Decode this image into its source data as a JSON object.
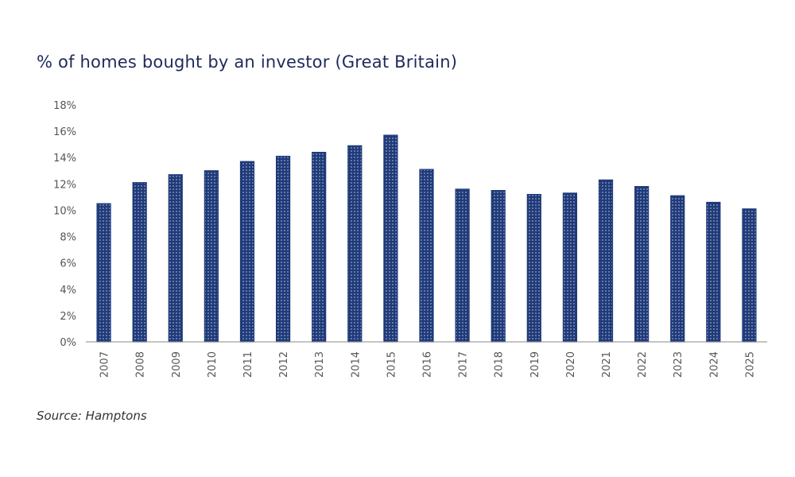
{
  "title": "% of homes bought by an investor (Great Britain)",
  "source": "Source: Hamptons",
  "colors": {
    "bar": "#1f3a7a",
    "bar_pattern": "#ffffff",
    "axis": "#888888"
  },
  "chart_data": {
    "type": "bar",
    "title": "% of homes bought by an investor (Great Britain)",
    "categories": [
      "2007",
      "2008",
      "2009",
      "2010",
      "2011",
      "2012",
      "2013",
      "2014",
      "2015",
      "2016",
      "2017",
      "2018",
      "2019",
      "2020",
      "2021",
      "2022",
      "2023",
      "2024",
      "2025"
    ],
    "values": [
      10.5,
      12.1,
      12.7,
      13.0,
      13.7,
      14.1,
      14.4,
      14.9,
      15.7,
      13.1,
      11.6,
      11.5,
      11.2,
      11.3,
      12.3,
      11.8,
      11.1,
      10.6,
      10.1
    ],
    "ylim": [
      0,
      18
    ],
    "yticks": [
      "0%",
      "2%",
      "4%",
      "6%",
      "8%",
      "10%",
      "12%",
      "14%",
      "16%",
      "18%"
    ],
    "ytick_values": [
      0,
      2,
      4,
      6,
      8,
      10,
      12,
      14,
      16,
      18
    ],
    "grid": false,
    "legend": "none"
  }
}
